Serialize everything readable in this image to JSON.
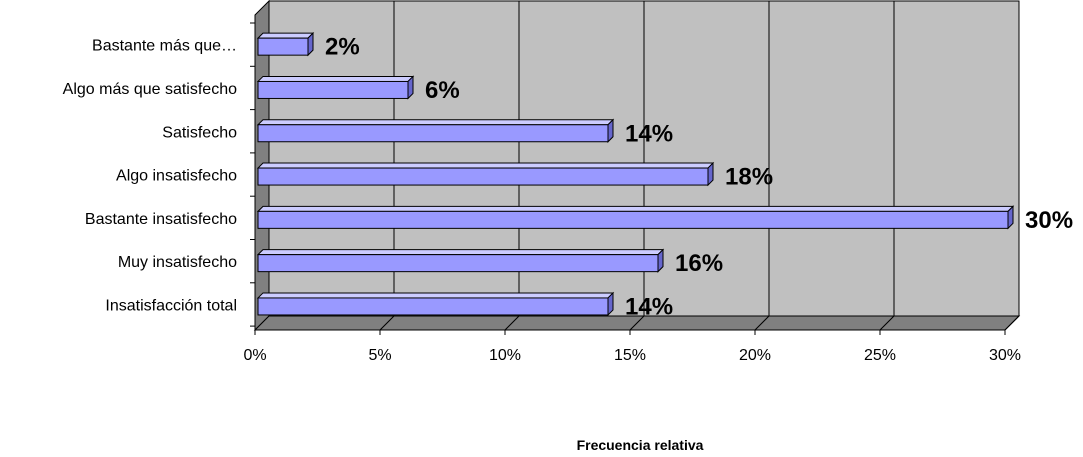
{
  "chart_data": {
    "type": "bar",
    "orientation": "horizontal",
    "categories": [
      "Bastante más que…",
      "Algo más que satisfecho",
      "Satisfecho",
      "Algo insatisfecho",
      "Bastante insatisfecho",
      "Muy insatisfecho",
      "Insatisfacción total"
    ],
    "values": [
      2,
      6,
      14,
      18,
      30,
      16,
      14
    ],
    "data_labels": [
      "2%",
      "6%",
      "14%",
      "18%",
      "30%",
      "16%",
      "14%"
    ],
    "xlabel": "Frecuencia  relativa",
    "xlim": [
      0,
      30
    ],
    "xticks": [
      0,
      5,
      10,
      15,
      20,
      25,
      30
    ],
    "xtick_labels": [
      "0%",
      "5%",
      "10%",
      "15%",
      "20%",
      "25%",
      "30%"
    ],
    "grid": true,
    "legend": "none",
    "colors": {
      "bar_front": "#9999ff",
      "bar_top": "#ccccff",
      "bar_side": "#6666cc",
      "plot_back": "#c0c0c0",
      "plot_floor": "#808080",
      "plot_wall": "#808080",
      "bar_stroke": "#000000"
    }
  }
}
